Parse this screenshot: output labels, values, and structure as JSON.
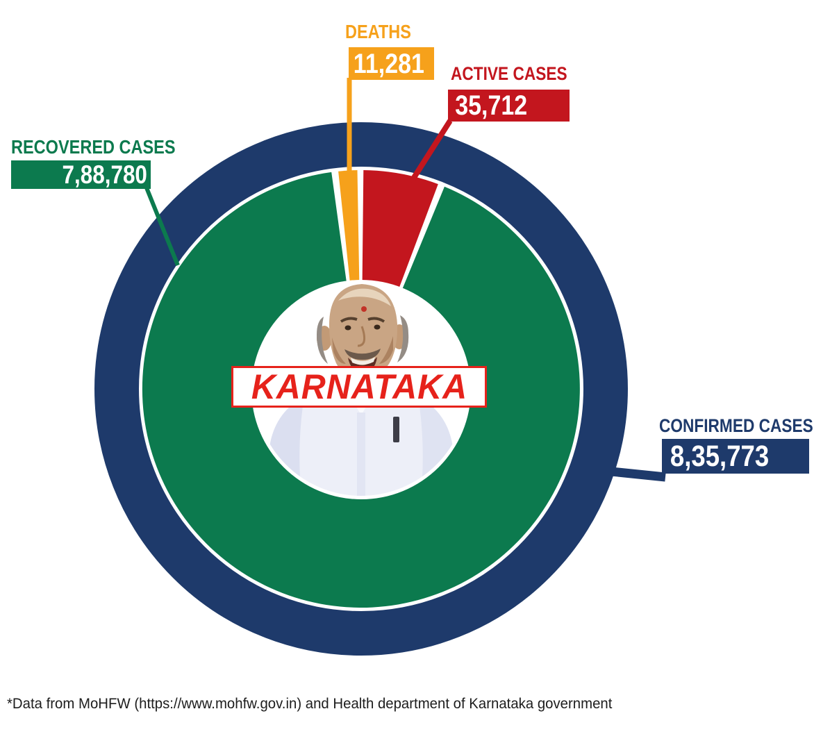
{
  "chart_data": {
    "type": "pie",
    "title": "KARNATAKA",
    "center_label": "KARNATAKA",
    "footnote": "*Data from MoHFW (https://www.mohfw.gov.in) and Health department of Karnataka government",
    "legend_position": "callouts-around-donut",
    "total": {
      "id": "confirmed",
      "label": "CONFIRMED CASES",
      "value_text": "8,35,773",
      "value": 835773,
      "color": "#1e3a6b"
    },
    "segments": [
      {
        "id": "deaths",
        "label": "DEATHS",
        "value_text": "11,281",
        "value": 11281,
        "color": "#f6a11b",
        "display_arc_deg": [
          -6.0,
          -1.0
        ]
      },
      {
        "id": "active",
        "label": "ACTIVE CASES",
        "value_text": "35,712",
        "value": 35712,
        "color": "#c3161e",
        "display_arc_deg": [
          0.6,
          20.6
        ]
      },
      {
        "id": "recovered",
        "label": "RECOVERED CASES",
        "value_text": "7,88,780",
        "value": 788780,
        "color": "#0c7a4e",
        "display_arc_deg": [
          22.4,
          352.2
        ]
      }
    ],
    "colors": {
      "background": "#ffffff",
      "center_label_red": "#e6221b",
      "value_text": "#ffffff",
      "footnote_text": "#1d1d1d"
    }
  }
}
